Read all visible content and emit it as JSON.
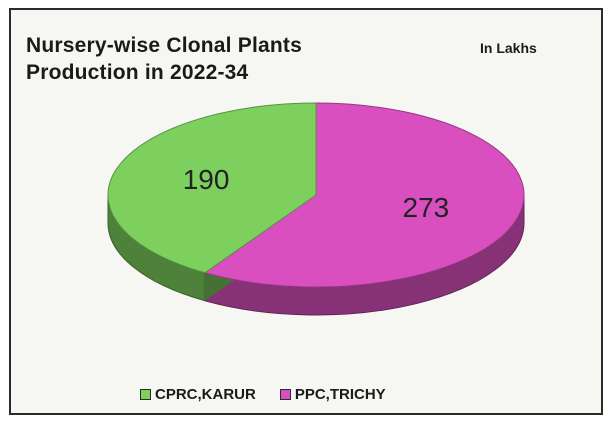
{
  "chart_data": {
    "type": "pie",
    "title_lines": [
      "Nursery-wise Clonal Plants",
      "Production in 2022-34"
    ],
    "unit_note": "In Lakhs",
    "categories": [
      "CPRC,KARUR",
      "PPC,TRICHY"
    ],
    "values": [
      190,
      273
    ],
    "colors": [
      "#7ed05e",
      "#d94fbf"
    ],
    "legend_position": "bottom"
  }
}
